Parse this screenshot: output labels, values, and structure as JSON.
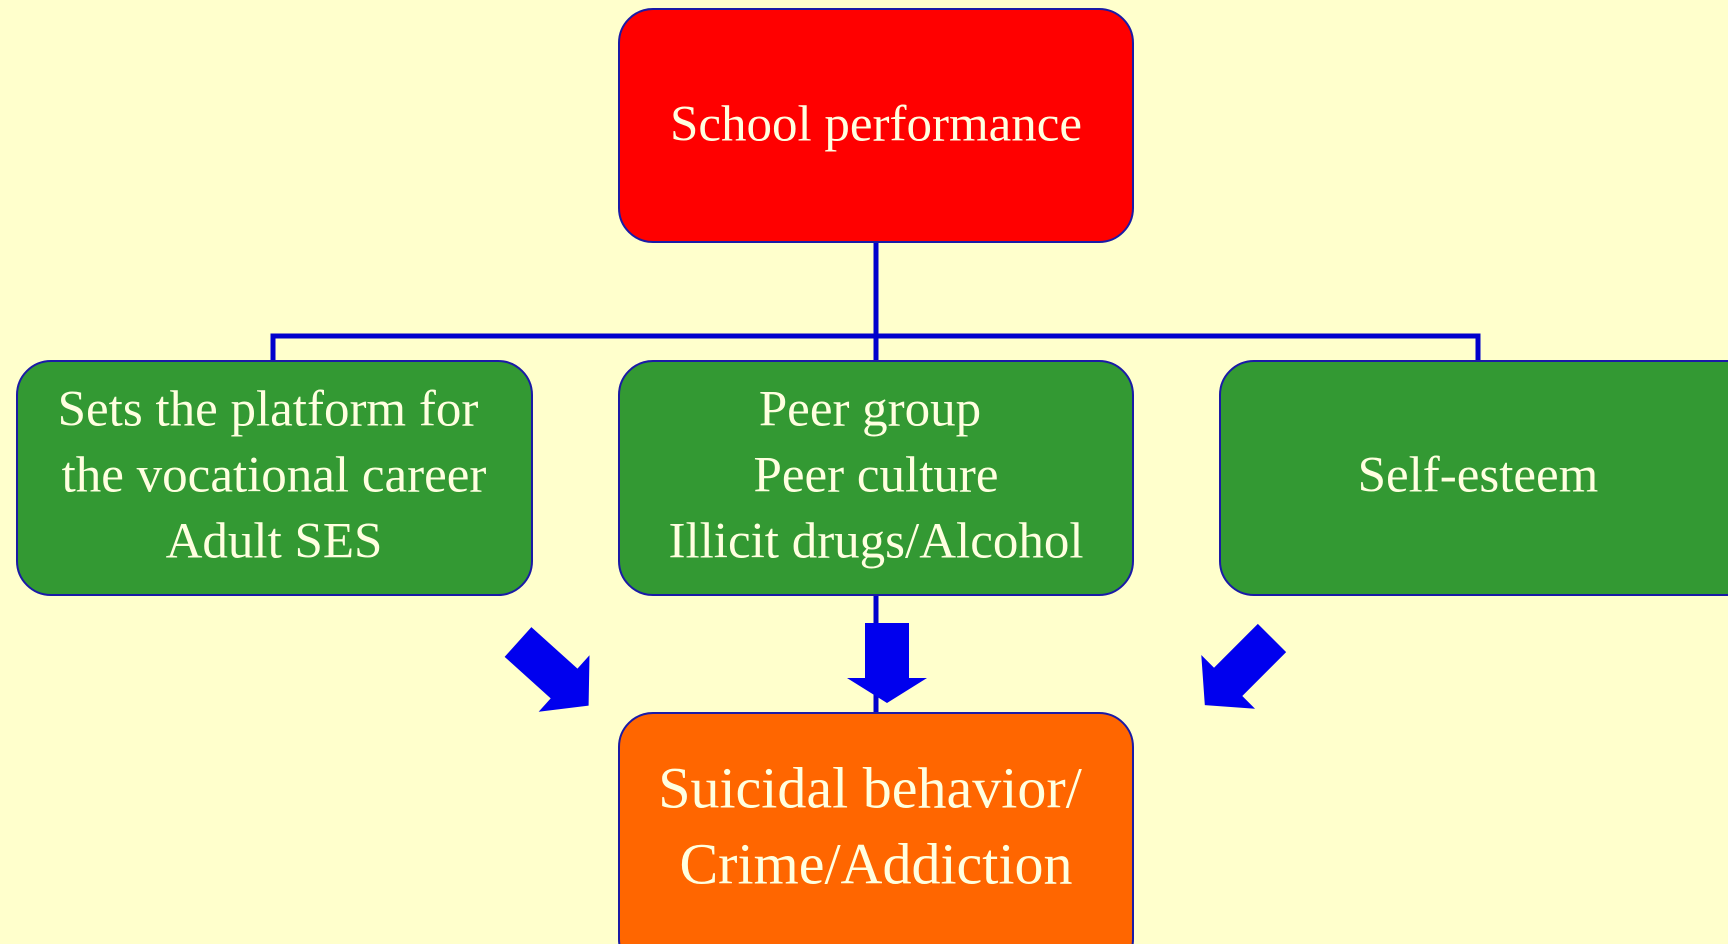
{
  "nodes": [
    {
      "lines": [
        "School performance"
      ]
    },
    {
      "lines": [
        "Sets the platform for",
        "the vocational career",
        "Adult SES"
      ]
    },
    {
      "lines": [
        "Peer group",
        "Peer culture",
        "Illicit drugs/Alcohol"
      ]
    },
    {
      "lines": [
        "Self-esteem"
      ]
    },
    {
      "lines": [
        "Suicidal behavior/",
        "Crime/Addiction"
      ]
    }
  ]
}
